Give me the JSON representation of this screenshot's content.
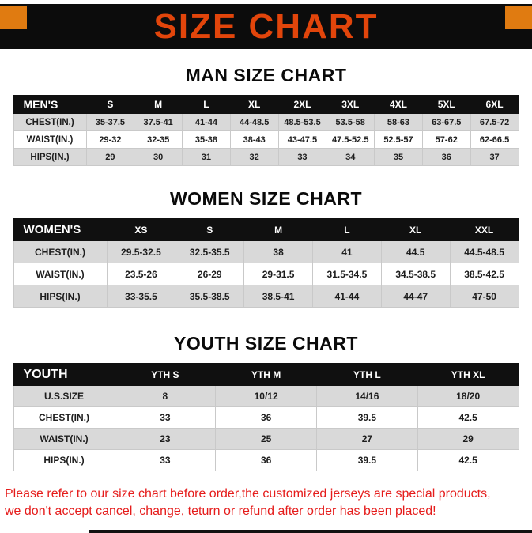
{
  "page": {
    "title": "SIZE CHART",
    "footer_line1": "Please refer to our size chart before order,the customized jerseys are special products,",
    "footer_line2": "we don't accept cancel, change, teturn or refund after order has been placed!"
  },
  "colors": {
    "banner_bg": "#0C0C0C",
    "title_text": "#E2450B",
    "corner_square": "#E07B11",
    "table_header_bg": "#101010",
    "row_shade": "#D9D9D9",
    "footer_text": "#E51C1B"
  },
  "tables": [
    {
      "title": "MAN SIZE CHART",
      "header": [
        "MEN'S",
        "S",
        "M",
        "L",
        "XL",
        "2XL",
        "3XL",
        "4XL",
        "5XL",
        "6XL"
      ],
      "rows": [
        [
          "CHEST(IN.)",
          "35-37.5",
          "37.5-41",
          "41-44",
          "44-48.5",
          "48.5-53.5",
          "53.5-58",
          "58-63",
          "63-67.5",
          "67.5-72"
        ],
        [
          "WAIST(IN.)",
          "29-32",
          "32-35",
          "35-38",
          "38-43",
          "43-47.5",
          "47.5-52.5",
          "52.5-57",
          "57-62",
          "62-66.5"
        ],
        [
          "HIPS(IN.)",
          "29",
          "30",
          "31",
          "32",
          "33",
          "34",
          "35",
          "36",
          "37"
        ]
      ]
    },
    {
      "title": "WOMEN SIZE CHART",
      "header": [
        "WOMEN'S",
        "XS",
        "S",
        "M",
        "L",
        "XL",
        "XXL"
      ],
      "rows": [
        [
          "CHEST(IN.)",
          "29.5-32.5",
          "32.5-35.5",
          "38",
          "41",
          "44.5",
          "44.5-48.5"
        ],
        [
          "WAIST(IN.)",
          "23.5-26",
          "26-29",
          "29-31.5",
          "31.5-34.5",
          "34.5-38.5",
          "38.5-42.5"
        ],
        [
          "HIPS(IN.)",
          "33-35.5",
          "35.5-38.5",
          "38.5-41",
          "41-44",
          "44-47",
          "47-50"
        ]
      ]
    },
    {
      "title": "YOUTH SIZE CHART",
      "header": [
        "YOUTH",
        "YTH S",
        "YTH M",
        "YTH L",
        "YTH XL"
      ],
      "rows": [
        [
          "U.S.SIZE",
          "8",
          "10/12",
          "14/16",
          "18/20"
        ],
        [
          "CHEST(IN.)",
          "33",
          "36",
          "39.5",
          "42.5"
        ],
        [
          "WAIST(IN.)",
          "23",
          "25",
          "27",
          "29"
        ],
        [
          "HIPS(IN.)",
          "33",
          "36",
          "39.5",
          "42.5"
        ]
      ]
    }
  ]
}
